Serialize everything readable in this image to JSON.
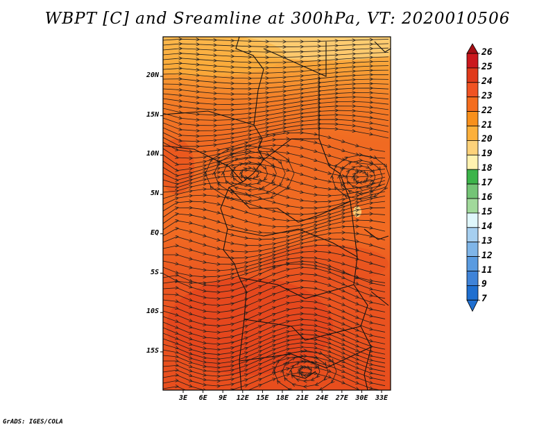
{
  "title": "WBPT [C] and Sreamline at 300hPa, VT: 2020010506",
  "credit": "GrADS: IGES/COLA",
  "map": {
    "lat_ticks": [
      "20N",
      "15N",
      "10N",
      "5N",
      "EQ",
      "5S",
      "10S",
      "15S"
    ],
    "lon_ticks": [
      "3E",
      "6E",
      "9E",
      "12E",
      "15E",
      "18E",
      "21E",
      "24E",
      "27E",
      "30E",
      "33E"
    ]
  },
  "colorbar": {
    "labels": [
      "26",
      "25",
      "24",
      "23",
      "22",
      "21",
      "20",
      "19",
      "18",
      "17",
      "16",
      "15",
      "14",
      "13",
      "12",
      "11",
      "9",
      "7"
    ],
    "colors": [
      "#a50f15",
      "#cb181d",
      "#e03a1b",
      "#f05323",
      "#f46d1e",
      "#f8901c",
      "#fcb03c",
      "#fdd27a",
      "#fff2b0",
      "#3cb44a",
      "#74c476",
      "#a1d99b",
      "#e0f7fb",
      "#a6cff0",
      "#7fb5e8",
      "#5a9be0",
      "#3f83d8",
      "#1f6fd0"
    ]
  }
}
